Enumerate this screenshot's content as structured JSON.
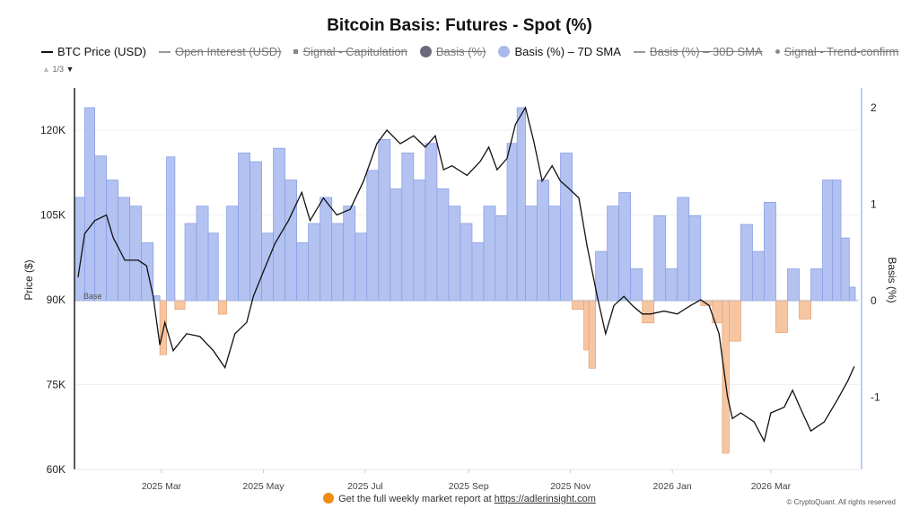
{
  "title": "Bitcoin Basis: Futures - Spot (%)",
  "legend": [
    {
      "label": "BTC Price (USD)",
      "type": "line",
      "enabled": true,
      "color": "#111111"
    },
    {
      "label": "Open Interest (USD)",
      "type": "line",
      "enabled": false,
      "color": "#999999"
    },
    {
      "label": "Signal - Capitulation",
      "type": "square",
      "enabled": false,
      "color": "#888888"
    },
    {
      "label": "Basis (%)",
      "type": "dot",
      "enabled": false,
      "color": "#6b6b7b"
    },
    {
      "label": "Basis (%) – 7D SMA",
      "type": "dot",
      "enabled": true,
      "color": "#a9b9ee"
    },
    {
      "label": "Basis (%) – 30D SMA",
      "type": "line",
      "enabled": false,
      "color": "#999999"
    },
    {
      "label": "Signal - Trend-confirm",
      "type": "smalldot",
      "enabled": false,
      "color": "#888888"
    }
  ],
  "pager": "1/3",
  "watermark": "CryptoQuant",
  "footer": {
    "text": "Get the full weekly market report at ",
    "link": "https://adlerinsight.com",
    "copyright": "© CryptoQuant. All rights reserved"
  },
  "chart_data": {
    "type": "line+area",
    "title": "Bitcoin Basis: Futures - Spot (%)",
    "ylabel_left": "Price ($)",
    "ylabel_right": "Basis (%)",
    "y_left_ticks": [
      "60K",
      "75K",
      "90K",
      "105K",
      "120K"
    ],
    "y_left_range": [
      60000,
      127000
    ],
    "y_right_ticks": [
      "-1",
      "0",
      "1",
      "2"
    ],
    "y_right_range": [
      -1.75,
      2.2
    ],
    "x_ticks": [
      {
        "label": "2025 Mar",
        "date": "2025-03-01"
      },
      {
        "label": "2025 May",
        "date": "2025-05-01"
      },
      {
        "label": "2025 Jul",
        "date": "2025-07-01"
      },
      {
        "label": "2025 Sep",
        "date": "2025-09-01"
      },
      {
        "label": "2025 Nov",
        "date": "2025-11-01"
      },
      {
        "label": "2026 Jan",
        "date": "2026-01-01"
      },
      {
        "label": "2026 Mar",
        "date": "2026-03-01"
      }
    ],
    "base_label": "Base",
    "colors": {
      "price": "#111111",
      "basis_pos": "#b3c2f0",
      "basis_pos_edge": "#8aa0e6",
      "basis_neg": "#f6c6a3",
      "basis_neg_edge": "#e8a577",
      "right_axis": "#a9bfe8"
    },
    "price_series": {
      "name": "BTC Price (USD)",
      "points": [
        [
          "2025-01-10",
          94000
        ],
        [
          "2025-01-14",
          101700
        ],
        [
          "2025-01-20",
          104000
        ],
        [
          "2025-01-27",
          105000
        ],
        [
          "2025-01-31",
          101000
        ],
        [
          "2025-02-07",
          97000
        ],
        [
          "2025-02-15",
          97000
        ],
        [
          "2025-02-20",
          96000
        ],
        [
          "2025-02-24",
          90600
        ],
        [
          "2025-02-28",
          82000
        ],
        [
          "2025-03-03",
          86000
        ],
        [
          "2025-03-08",
          81000
        ],
        [
          "2025-03-16",
          84000
        ],
        [
          "2025-03-24",
          83500
        ],
        [
          "2025-04-01",
          81000
        ],
        [
          "2025-04-08",
          78000
        ],
        [
          "2025-04-14",
          84000
        ],
        [
          "2025-04-21",
          86000
        ],
        [
          "2025-04-25",
          90600
        ],
        [
          "2025-05-01",
          95000
        ],
        [
          "2025-05-08",
          100000
        ],
        [
          "2025-05-16",
          104000
        ],
        [
          "2025-05-24",
          109000
        ],
        [
          "2025-05-29",
          104000
        ],
        [
          "2025-06-06",
          108000
        ],
        [
          "2025-06-14",
          105000
        ],
        [
          "2025-06-22",
          106000
        ],
        [
          "2025-06-30",
          111000
        ],
        [
          "2025-07-08",
          117600
        ],
        [
          "2025-07-14",
          120000
        ],
        [
          "2025-07-22",
          117600
        ],
        [
          "2025-07-30",
          119000
        ],
        [
          "2025-08-06",
          117000
        ],
        [
          "2025-08-12",
          119000
        ],
        [
          "2025-08-17",
          113000
        ],
        [
          "2025-08-22",
          113700
        ],
        [
          "2025-08-31",
          112000
        ],
        [
          "2025-09-08",
          114500
        ],
        [
          "2025-09-13",
          117000
        ],
        [
          "2025-09-18",
          113000
        ],
        [
          "2025-09-24",
          115000
        ],
        [
          "2025-09-29",
          121000
        ],
        [
          "2025-10-05",
          124000
        ],
        [
          "2025-10-10",
          118000
        ],
        [
          "2025-10-15",
          111000
        ],
        [
          "2025-10-21",
          113700
        ],
        [
          "2025-10-26",
          111000
        ],
        [
          "2025-10-31",
          109700
        ],
        [
          "2025-11-06",
          108000
        ],
        [
          "2025-11-11",
          99400
        ],
        [
          "2025-11-17",
          90600
        ],
        [
          "2025-11-22",
          84000
        ],
        [
          "2025-11-27",
          89000
        ],
        [
          "2025-12-03",
          90600
        ],
        [
          "2025-12-08",
          89000
        ],
        [
          "2025-12-14",
          87500
        ],
        [
          "2025-12-19",
          87500
        ],
        [
          "2025-12-27",
          88000
        ],
        [
          "2026-01-04",
          87500
        ],
        [
          "2026-01-12",
          89000
        ],
        [
          "2026-01-18",
          90000
        ],
        [
          "2026-01-23",
          89000
        ],
        [
          "2026-01-29",
          84000
        ],
        [
          "2026-02-03",
          73000
        ],
        [
          "2026-02-06",
          69000
        ],
        [
          "2026-02-11",
          70000
        ],
        [
          "2026-02-19",
          68400
        ],
        [
          "2026-02-25",
          65000
        ],
        [
          "2026-03-01",
          70000
        ],
        [
          "2026-03-09",
          71000
        ],
        [
          "2026-03-14",
          74000
        ],
        [
          "2026-03-20",
          70000
        ],
        [
          "2026-03-25",
          66800
        ],
        [
          "2026-04-02",
          68400
        ],
        [
          "2026-04-10",
          72400
        ],
        [
          "2026-04-16",
          75600
        ],
        [
          "2026-04-20",
          78200
        ]
      ]
    },
    "basis_series": {
      "name": "Basis (%) – 7D SMA",
      "points": [
        [
          "2025-01-08",
          1.07
        ],
        [
          "2025-01-14",
          2.0
        ],
        [
          "2025-01-20",
          1.5
        ],
        [
          "2025-01-27",
          1.25
        ],
        [
          "2025-02-03",
          1.07
        ],
        [
          "2025-02-10",
          0.98
        ],
        [
          "2025-02-17",
          0.6
        ],
        [
          "2025-02-24",
          0.05
        ],
        [
          "2025-02-28",
          -0.56
        ],
        [
          "2025-03-04",
          1.49
        ],
        [
          "2025-03-09",
          -0.09
        ],
        [
          "2025-03-15",
          0.8
        ],
        [
          "2025-03-22",
          0.98
        ],
        [
          "2025-03-29",
          0.7
        ],
        [
          "2025-04-04",
          -0.14
        ],
        [
          "2025-04-09",
          0.98
        ],
        [
          "2025-04-16",
          1.53
        ],
        [
          "2025-04-23",
          1.44
        ],
        [
          "2025-04-30",
          0.7
        ],
        [
          "2025-05-07",
          1.58
        ],
        [
          "2025-05-14",
          1.25
        ],
        [
          "2025-05-21",
          0.6
        ],
        [
          "2025-05-28",
          0.8
        ],
        [
          "2025-06-04",
          1.07
        ],
        [
          "2025-06-11",
          0.8
        ],
        [
          "2025-06-18",
          0.98
        ],
        [
          "2025-06-25",
          0.7
        ],
        [
          "2025-07-02",
          1.35
        ],
        [
          "2025-07-09",
          1.67
        ],
        [
          "2025-07-16",
          1.16
        ],
        [
          "2025-07-23",
          1.53
        ],
        [
          "2025-07-30",
          1.25
        ],
        [
          "2025-08-06",
          1.63
        ],
        [
          "2025-08-13",
          1.16
        ],
        [
          "2025-08-20",
          0.98
        ],
        [
          "2025-08-27",
          0.8
        ],
        [
          "2025-09-03",
          0.6
        ],
        [
          "2025-09-10",
          0.98
        ],
        [
          "2025-09-17",
          0.88
        ],
        [
          "2025-09-24",
          1.63
        ],
        [
          "2025-09-30",
          2.0
        ],
        [
          "2025-10-05",
          0.98
        ],
        [
          "2025-10-12",
          1.25
        ],
        [
          "2025-10-19",
          0.98
        ],
        [
          "2025-10-26",
          1.53
        ],
        [
          "2025-11-02",
          -0.09
        ],
        [
          "2025-11-09",
          -0.51
        ],
        [
          "2025-11-12",
          -0.7
        ],
        [
          "2025-11-16",
          0.51
        ],
        [
          "2025-11-23",
          0.98
        ],
        [
          "2025-11-30",
          1.12
        ],
        [
          "2025-12-07",
          0.33
        ],
        [
          "2025-12-14",
          -0.23
        ],
        [
          "2025-12-21",
          0.88
        ],
        [
          "2025-12-28",
          0.33
        ],
        [
          "2026-01-04",
          1.07
        ],
        [
          "2026-01-11",
          0.88
        ],
        [
          "2026-01-18",
          -0.05
        ],
        [
          "2026-01-25",
          -0.23
        ],
        [
          "2026-01-31",
          -1.58
        ],
        [
          "2026-02-04",
          -0.42
        ],
        [
          "2026-02-11",
          0.79
        ],
        [
          "2026-02-18",
          0.51
        ],
        [
          "2026-02-25",
          1.02
        ],
        [
          "2026-03-04",
          -0.33
        ],
        [
          "2026-03-11",
          0.33
        ],
        [
          "2026-03-18",
          -0.19
        ],
        [
          "2026-03-25",
          0.33
        ],
        [
          "2026-04-01",
          1.25
        ],
        [
          "2026-04-07",
          1.25
        ],
        [
          "2026-04-12",
          0.65
        ],
        [
          "2026-04-17",
          0.14
        ]
      ]
    }
  }
}
